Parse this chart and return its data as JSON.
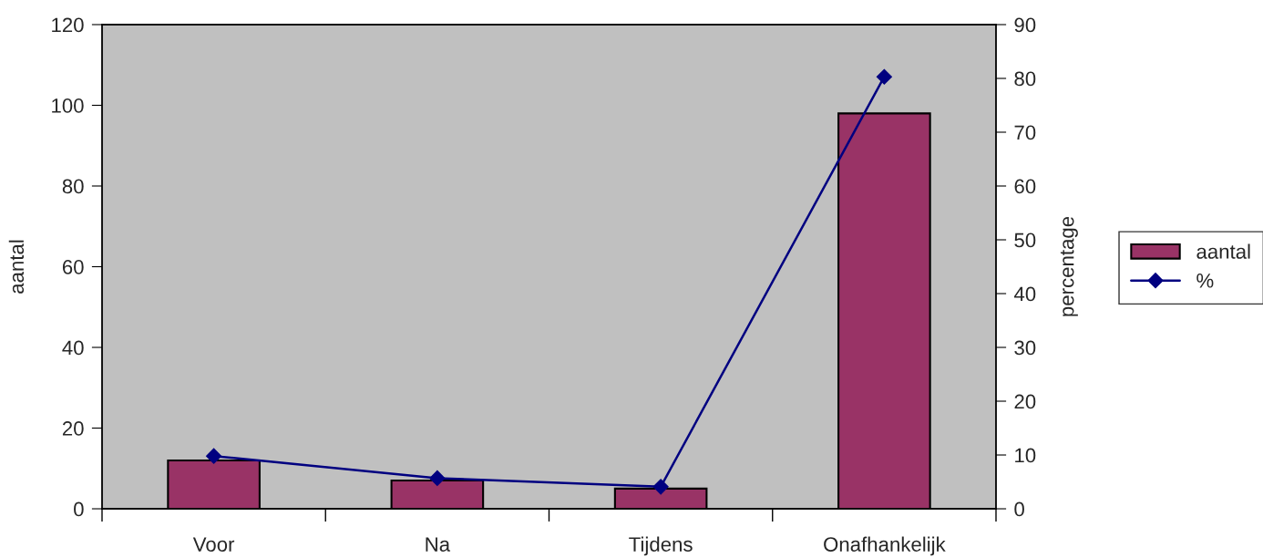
{
  "chart_data": {
    "type": "bar",
    "categories": [
      "Voor",
      "Na",
      "Tijdens",
      "Onafhankelijk"
    ],
    "ylabel": "aantal",
    "y2label": "percentage",
    "series": [
      {
        "name": "aantal",
        "color": "#993366",
        "values": [
          12,
          7,
          5,
          98
        ]
      },
      {
        "name": "%",
        "type": "line",
        "axis": "y2",
        "color": "#000080",
        "values": [
          9.8,
          5.7,
          4.1,
          80.3
        ],
        "marker": "diamond",
        "line_style": "solid"
      }
    ],
    "ylim": [
      0,
      120
    ],
    "yticks": [
      0,
      20,
      40,
      60,
      80,
      100,
      120
    ],
    "y2lim": [
      0,
      90
    ],
    "y2ticks": [
      0,
      10,
      20,
      30,
      40,
      50,
      60,
      70,
      80,
      90
    ],
    "grid": false,
    "legend": "right"
  }
}
